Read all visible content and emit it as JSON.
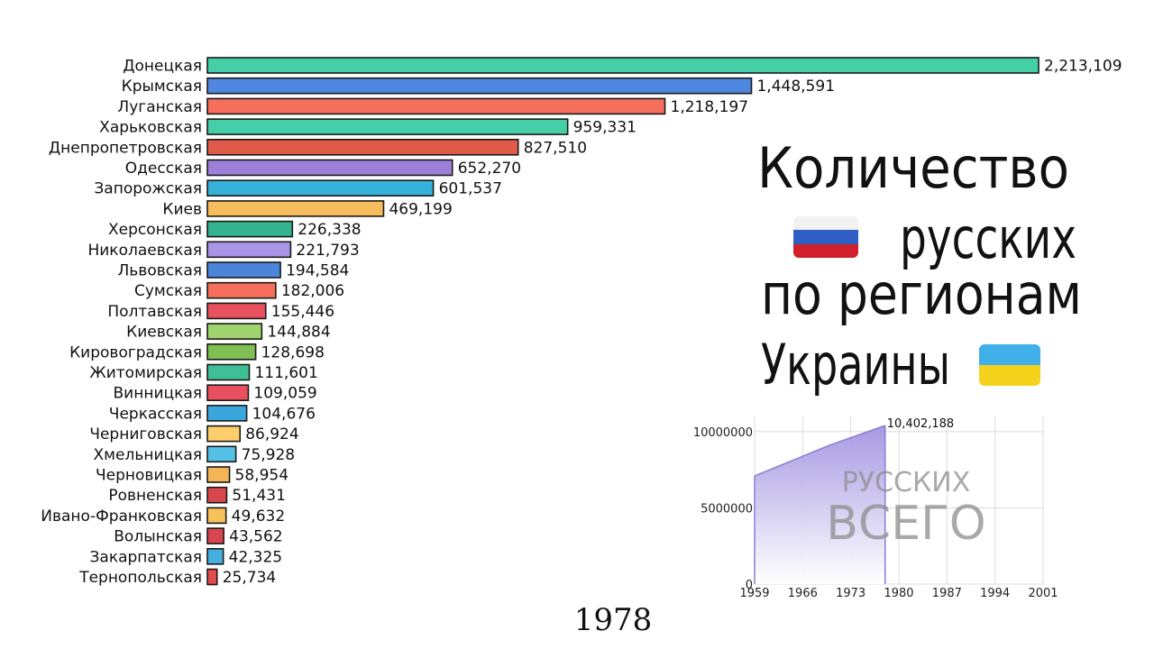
{
  "title": {
    "line1": "Количество",
    "line2": "русских",
    "line3": "по регионам",
    "line4": "Украины"
  },
  "year_label": "1978",
  "flags": {
    "russia": {
      "colors": [
        "#f2f2f2",
        "#2f5fc4",
        "#d0202a"
      ]
    },
    "ukraine": {
      "colors": [
        "#3fb0e8",
        "#f5d21c"
      ]
    }
  },
  "chart_data": [
    {
      "type": "bar",
      "orientation": "horizontal",
      "categories": [
        "Донецкая",
        "Крымская",
        "Луганская",
        "Харьковская",
        "Днепропетровская",
        "Одесская",
        "Запорожская",
        "Киев",
        "Херсонская",
        "Николаевская",
        "Львовская",
        "Сумская",
        "Полтавская",
        "Киевская",
        "Кировоградская",
        "Житомирская",
        "Винницкая",
        "Черкасская",
        "Черниговская",
        "Хмельницкая",
        "Черновицкая",
        "Ровненская",
        "Ивано-Франковская",
        "Волынская",
        "Закарпатская",
        "Тернопольская"
      ],
      "values": [
        2213109,
        1448591,
        1218197,
        959331,
        827510,
        652270,
        601537,
        469199,
        226338,
        221793,
        194584,
        182006,
        155446,
        144884,
        128698,
        111601,
        109059,
        104676,
        86924,
        75928,
        58954,
        51431,
        49632,
        43562,
        42325,
        25734
      ],
      "value_labels": [
        "2,213,109",
        "1,448,591",
        "1,218,197",
        "959,331",
        "827,510",
        "652,270",
        "601,537",
        "469,199",
        "226,338",
        "221,793",
        "194,584",
        "182,006",
        "155,446",
        "144,884",
        "128,698",
        "111,601",
        "109,059",
        "104,676",
        "86,924",
        "75,928",
        "58,954",
        "51,431",
        "49,632",
        "43,562",
        "42,325",
        "25,734"
      ],
      "colors": [
        "#45cfa6",
        "#4f86df",
        "#f56f5c",
        "#45cfa6",
        "#e05a4a",
        "#9b7fd9",
        "#35b1d9",
        "#f7bd5c",
        "#33b38f",
        "#a995e8",
        "#4b85d9",
        "#f56f5c",
        "#e8505e",
        "#9fd46f",
        "#7fbf53",
        "#3fbf96",
        "#e8505e",
        "#3aa7dc",
        "#fccf6c",
        "#55c0e5",
        "#f4b559",
        "#d9464e",
        "#f7c25a",
        "#d9464e",
        "#45afe0",
        "#e24c4c"
      ],
      "xlim": [
        0,
        2213109
      ],
      "grid": false,
      "legend": "none"
    },
    {
      "type": "area",
      "x": [
        1959,
        1970,
        1978
      ],
      "values": [
        7090813,
        9126331,
        10402188
      ],
      "end_label": "10,402,188",
      "watermark": [
        "русских",
        "всего"
      ],
      "xlim": [
        1959,
        2001
      ],
      "ylim": [
        0,
        11000000
      ],
      "xticks": [
        1959,
        1966,
        1973,
        1980,
        1987,
        1994,
        2001
      ],
      "yticks": [
        0,
        5000000,
        10000000
      ],
      "ytick_labels": [
        "0",
        "5000000",
        "10000000"
      ],
      "grid": true,
      "color": "#9d8ee0"
    }
  ]
}
